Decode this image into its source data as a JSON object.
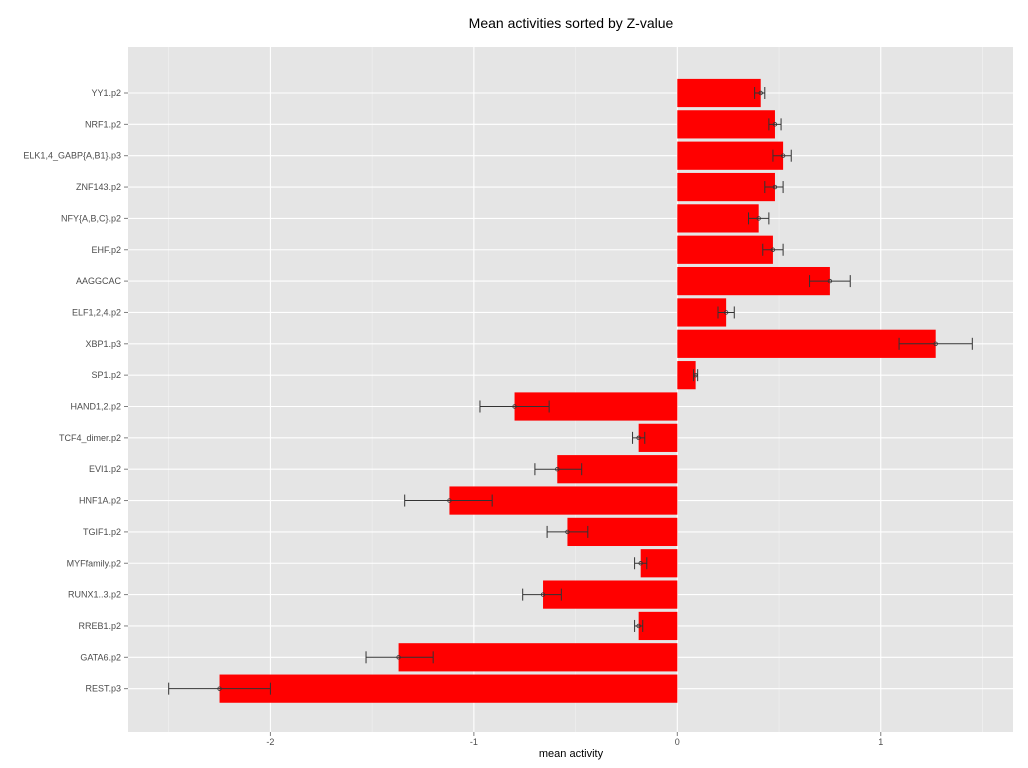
{
  "chart_data": {
    "type": "bar",
    "orientation": "horizontal",
    "title": "Mean activities sorted by Z-value",
    "xlabel": "mean activity",
    "ylabel": "",
    "xlim": [
      -2.7,
      1.65
    ],
    "x_ticks": [
      -2,
      -1,
      0,
      1
    ],
    "x_tick_labels": [
      "-2",
      "-1",
      "0",
      "1"
    ],
    "grid": true,
    "legend": "none",
    "bar_color": "#ff0000",
    "panel_color": "#e5e5e5",
    "categories": [
      "YY1.p2",
      "NRF1.p2",
      "ELK1,4_GABP{A,B1}.p3",
      "ZNF143.p2",
      "NFY{A,B,C}.p2",
      "EHF.p2",
      "AAGGCAC",
      "ELF1,2,4.p2",
      "XBP1.p3",
      "SP1.p2",
      "HAND1,2.p2",
      "TCF4_dimer.p2",
      "EVI1.p2",
      "HNF1A.p2",
      "TGIF1.p2",
      "MYFfamily.p2",
      "RUNX1..3.p2",
      "RREB1.p2",
      "GATA6.p2",
      "REST.p3"
    ],
    "values": [
      0.41,
      0.48,
      0.52,
      0.48,
      0.4,
      0.47,
      0.75,
      0.24,
      1.27,
      0.09,
      -0.8,
      -0.19,
      -0.59,
      -1.12,
      -0.54,
      -0.18,
      -0.66,
      -0.19,
      -1.37,
      -2.25
    ],
    "error_low": [
      0.38,
      0.45,
      0.47,
      0.43,
      0.35,
      0.42,
      0.65,
      0.2,
      1.09,
      0.08,
      -0.97,
      -0.22,
      -0.7,
      -1.34,
      -0.64,
      -0.21,
      -0.76,
      -0.21,
      -1.53,
      -2.5
    ],
    "error_high": [
      0.43,
      0.51,
      0.56,
      0.52,
      0.45,
      0.52,
      0.85,
      0.28,
      1.45,
      0.1,
      -0.63,
      -0.16,
      -0.47,
      -0.91,
      -0.44,
      -0.15,
      -0.57,
      -0.17,
      -1.2,
      -2.0
    ]
  }
}
